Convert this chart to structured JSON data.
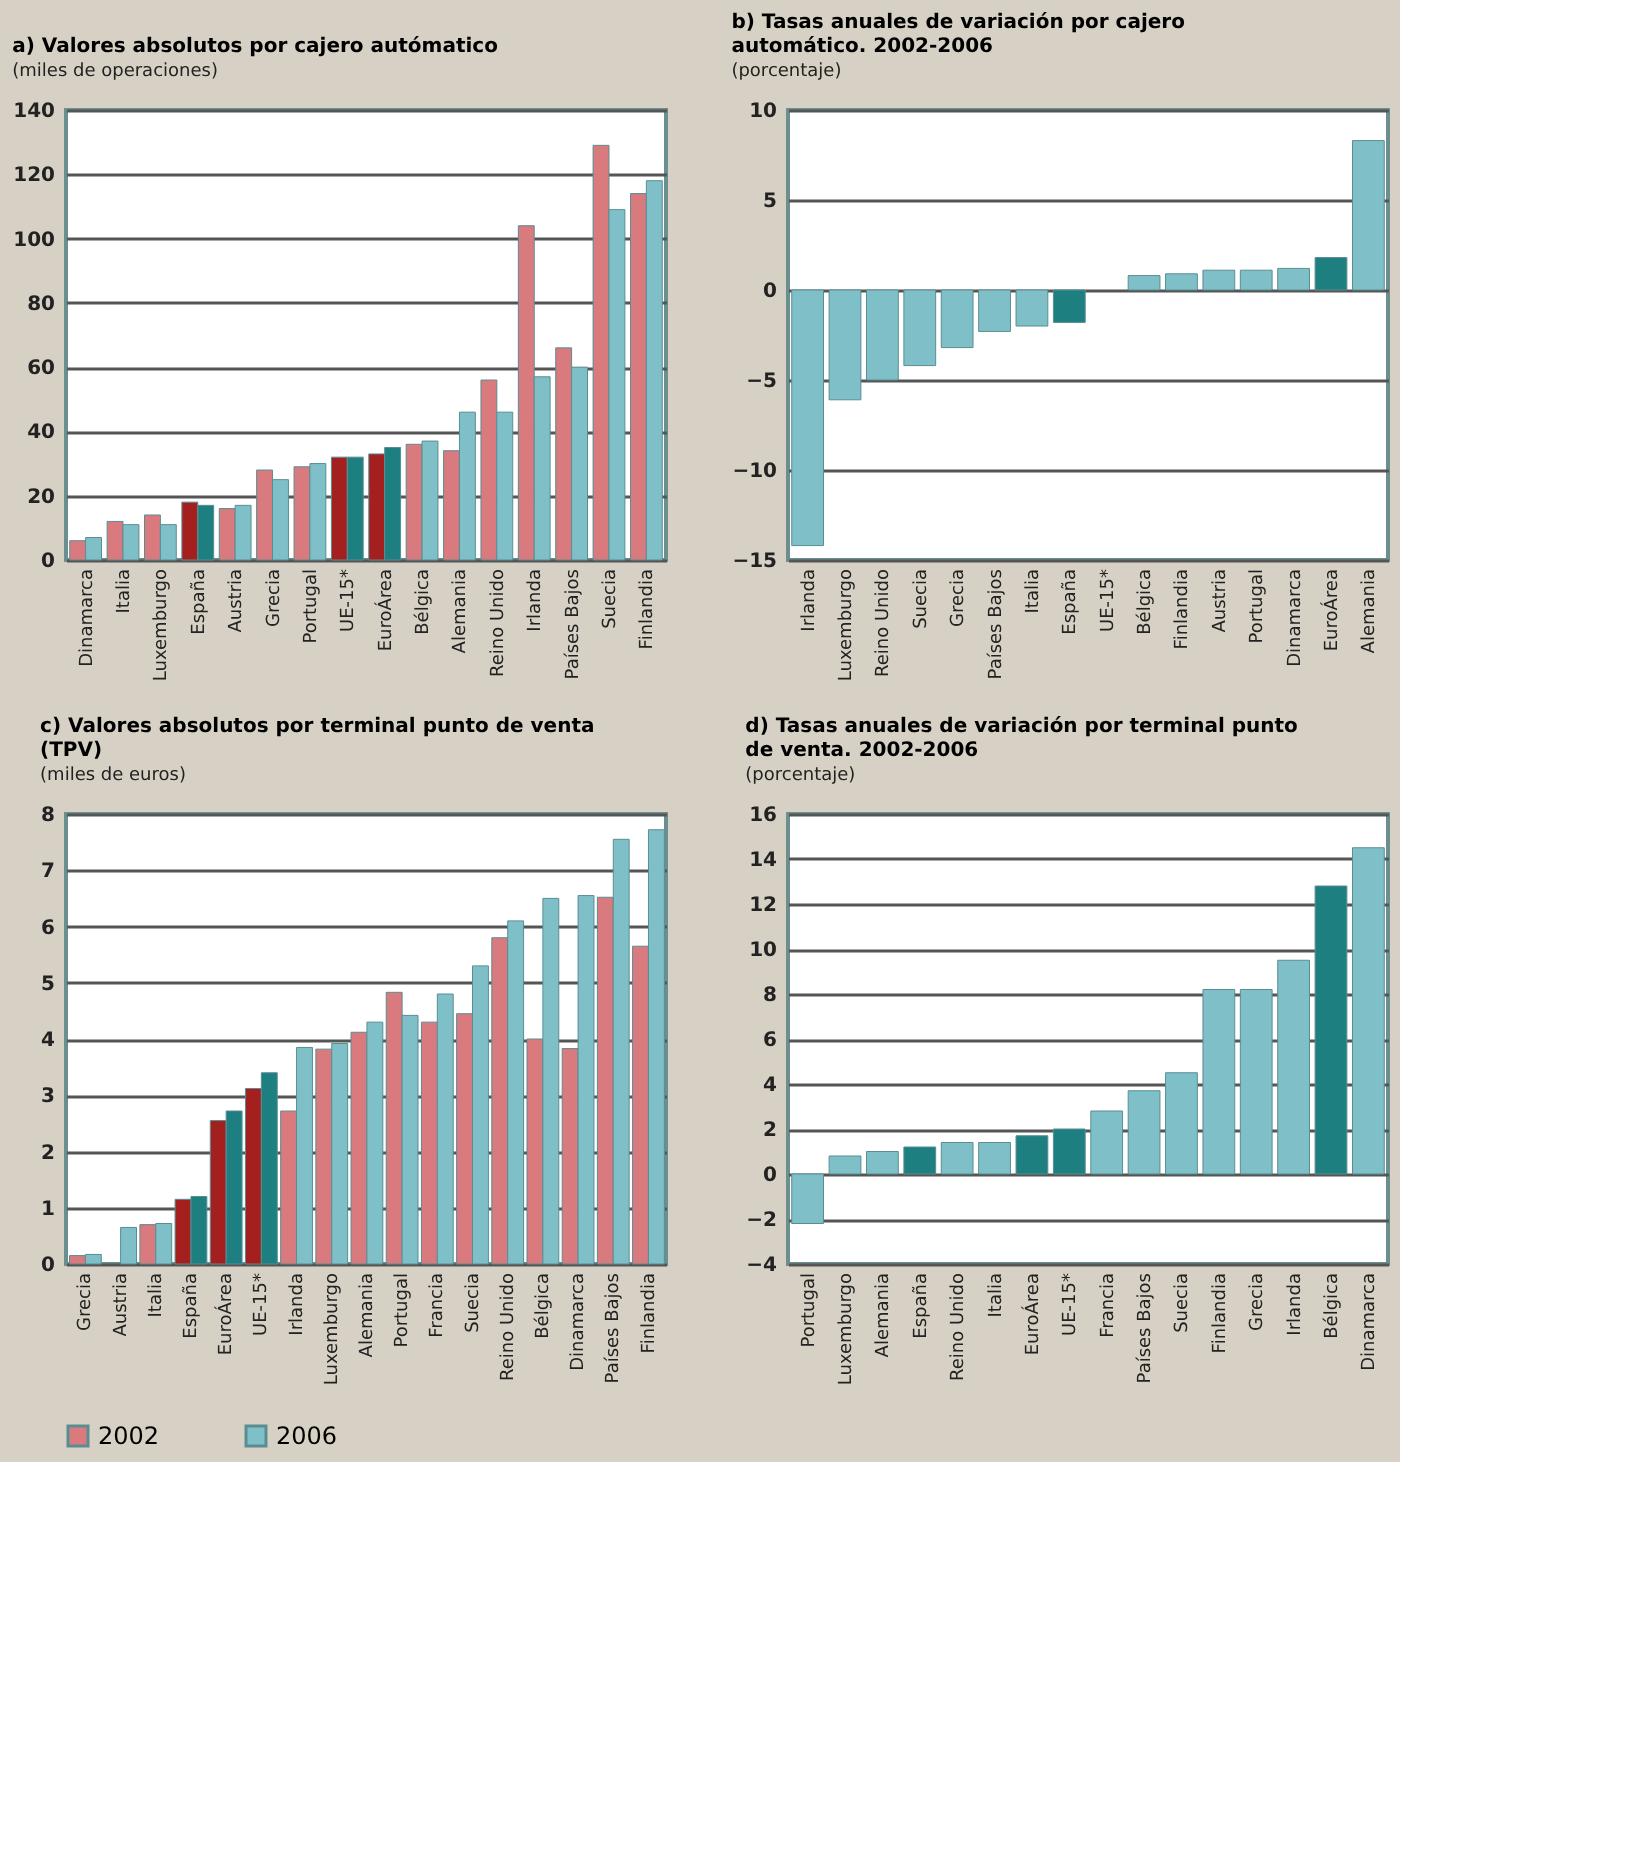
{
  "chart_data": [
    {
      "type": "bar",
      "title": "a) Valores absolutos por cajero autómatico",
      "subtitle": "(miles de operaciones)",
      "categories": [
        "Dinamarca",
        "Italia",
        "Luxemburgo",
        "España",
        "Austria",
        "Grecia",
        "Portugal",
        "UE-15*",
        "EuroÁrea",
        "Bélgica",
        "Alemania",
        "Reino Unido",
        "Irlanda",
        "Países Bajos",
        "Suecia",
        "Finlandia"
      ],
      "series": [
        {
          "name": "2002",
          "color": "#d97a7f",
          "colors": [
            "#d97a7f",
            "#d97a7f",
            "#d97a7f",
            "#a3201f",
            "#d97a7f",
            "#d97a7f",
            "#d97a7f",
            "#a3201f",
            "#a3201f",
            "#d97a7f",
            "#d97a7f",
            "#d97a7f",
            "#d97a7f",
            "#d97a7f",
            "#d97a7f",
            "#d97a7f"
          ],
          "values": [
            6,
            12,
            14,
            18,
            16,
            28,
            29,
            32,
            33,
            36,
            34,
            56,
            104,
            66,
            129,
            114
          ]
        },
        {
          "name": "2006",
          "color": "#7fc0c8",
          "colors": [
            "#7fc0c8",
            "#7fc0c8",
            "#7fc0c8",
            "#1e7f80",
            "#7fc0c8",
            "#7fc0c8",
            "#7fc0c8",
            "#1e7f80",
            "#1e7f80",
            "#7fc0c8",
            "#7fc0c8",
            "#7fc0c8",
            "#7fc0c8",
            "#7fc0c8",
            "#7fc0c8",
            "#7fc0c8"
          ],
          "values": [
            7,
            11,
            11,
            17,
            17,
            25,
            30,
            32,
            35,
            37,
            46,
            46,
            57,
            60,
            109,
            118
          ]
        }
      ],
      "ylim": [
        0,
        140
      ],
      "yticks": [
        0,
        20,
        40,
        60,
        80,
        100,
        120,
        140
      ],
      "grid": "y",
      "legend": "bottom"
    },
    {
      "type": "bar",
      "title": "b) Tasas anuales de variación por cajero automático. 2002-2006",
      "subtitle": "(porcentaje)",
      "categories": [
        "Irlanda",
        "Luxemburgo",
        "Reino Unido",
        "Suecia",
        "Grecia",
        "Países Bajos",
        "Italia",
        "España",
        "UE-15*",
        "Bélgica",
        "Finlandia",
        "Austria",
        "Portugal",
        "Dinamarca",
        "EuroÁrea",
        "Alemania"
      ],
      "values": [
        -14.2,
        -6.1,
        -5.0,
        -4.2,
        -3.2,
        -2.3,
        -2.0,
        -1.8,
        null,
        0.8,
        0.9,
        1.1,
        1.1,
        1.2,
        1.8,
        8.3
      ],
      "colors": [
        "#7fc0c8",
        "#7fc0c8",
        "#7fc0c8",
        "#7fc0c8",
        "#7fc0c8",
        "#7fc0c8",
        "#7fc0c8",
        "#1e7f80",
        "#7fc0c8",
        "#7fc0c8",
        "#7fc0c8",
        "#7fc0c8",
        "#7fc0c8",
        "#7fc0c8",
        "#1e7f80",
        "#7fc0c8"
      ],
      "ylim": [
        -15,
        10
      ],
      "yticks": [
        -15,
        -10,
        -5,
        0,
        5,
        10
      ],
      "grid": "y"
    },
    {
      "type": "bar",
      "title": "c) Valores absolutos por terminal punto de venta (TPV)",
      "subtitle": "(miles de euros)",
      "categories": [
        "Grecia",
        "Austria",
        "Italia",
        "España",
        "EuroÁrea",
        "UE-15*",
        "Irlanda",
        "Luxemburgo",
        "Alemania",
        "Portugal",
        "Francia",
        "Suecia",
        "Reino Unido",
        "Bélgica",
        "Dinamarca",
        "Países Bajos",
        "Finlandia"
      ],
      "series": [
        {
          "name": "2002",
          "color": "#d97a7f",
          "colors": [
            "#d97a7f",
            "#d97a7f",
            "#d97a7f",
            "#a3201f",
            "#a3201f",
            "#a3201f",
            "#d97a7f",
            "#d97a7f",
            "#d97a7f",
            "#d97a7f",
            "#d97a7f",
            "#d97a7f",
            "#d97a7f",
            "#d97a7f",
            "#d97a7f",
            "#d97a7f",
            "#d97a7f"
          ],
          "values": [
            0.15,
            null,
            0.7,
            1.15,
            2.55,
            3.12,
            2.72,
            3.82,
            4.12,
            4.83,
            4.3,
            4.45,
            5.8,
            4.0,
            3.83,
            6.52,
            5.65
          ]
        },
        {
          "name": "2006",
          "color": "#7fc0c8",
          "colors": [
            "#7fc0c8",
            "#7fc0c8",
            "#7fc0c8",
            "#1e7f80",
            "#1e7f80",
            "#1e7f80",
            "#7fc0c8",
            "#7fc0c8",
            "#7fc0c8",
            "#7fc0c8",
            "#7fc0c8",
            "#7fc0c8",
            "#7fc0c8",
            "#7fc0c8",
            "#7fc0c8",
            "#7fc0c8",
            "#7fc0c8"
          ],
          "values": [
            0.17,
            0.65,
            0.72,
            1.2,
            2.72,
            3.4,
            3.85,
            3.92,
            4.3,
            4.42,
            4.8,
            5.3,
            6.1,
            6.5,
            6.55,
            7.55,
            7.72
          ]
        }
      ],
      "ylim": [
        0,
        8
      ],
      "yticks": [
        0,
        1,
        2,
        3,
        4,
        5,
        6,
        7,
        8
      ],
      "grid": "y",
      "legend": "bottom"
    },
    {
      "type": "bar",
      "title": "d) Tasas anuales de variación por terminal punto de venta. 2002-2006",
      "subtitle": "(porcentaje)",
      "categories": [
        "Portugal",
        "Luxemburgo",
        "Alemania",
        "España",
        "Reino Unido",
        "Italia",
        "EuroÁrea",
        "UE-15*",
        "Francia",
        "Países Bajos",
        "Suecia",
        "Finlandia",
        "Grecia",
        "Irlanda",
        "Bélgica",
        "Dinamarca"
      ],
      "values": [
        -2.2,
        0.8,
        1.0,
        1.2,
        1.4,
        1.4,
        1.7,
        2.0,
        2.8,
        3.7,
        4.5,
        8.2,
        8.2,
        9.5,
        12.8,
        14.5
      ],
      "colors": [
        "#7fc0c8",
        "#7fc0c8",
        "#7fc0c8",
        "#1e7f80",
        "#7fc0c8",
        "#7fc0c8",
        "#1e7f80",
        "#1e7f80",
        "#7fc0c8",
        "#7fc0c8",
        "#7fc0c8",
        "#7fc0c8",
        "#7fc0c8",
        "#7fc0c8",
        "#1e7f80",
        "#7fc0c8"
      ],
      "ylim": [
        -4,
        16
      ],
      "yticks": [
        -4,
        -2,
        0,
        2,
        4,
        6,
        8,
        10,
        12,
        14,
        16
      ],
      "grid": "y"
    }
  ]
}
